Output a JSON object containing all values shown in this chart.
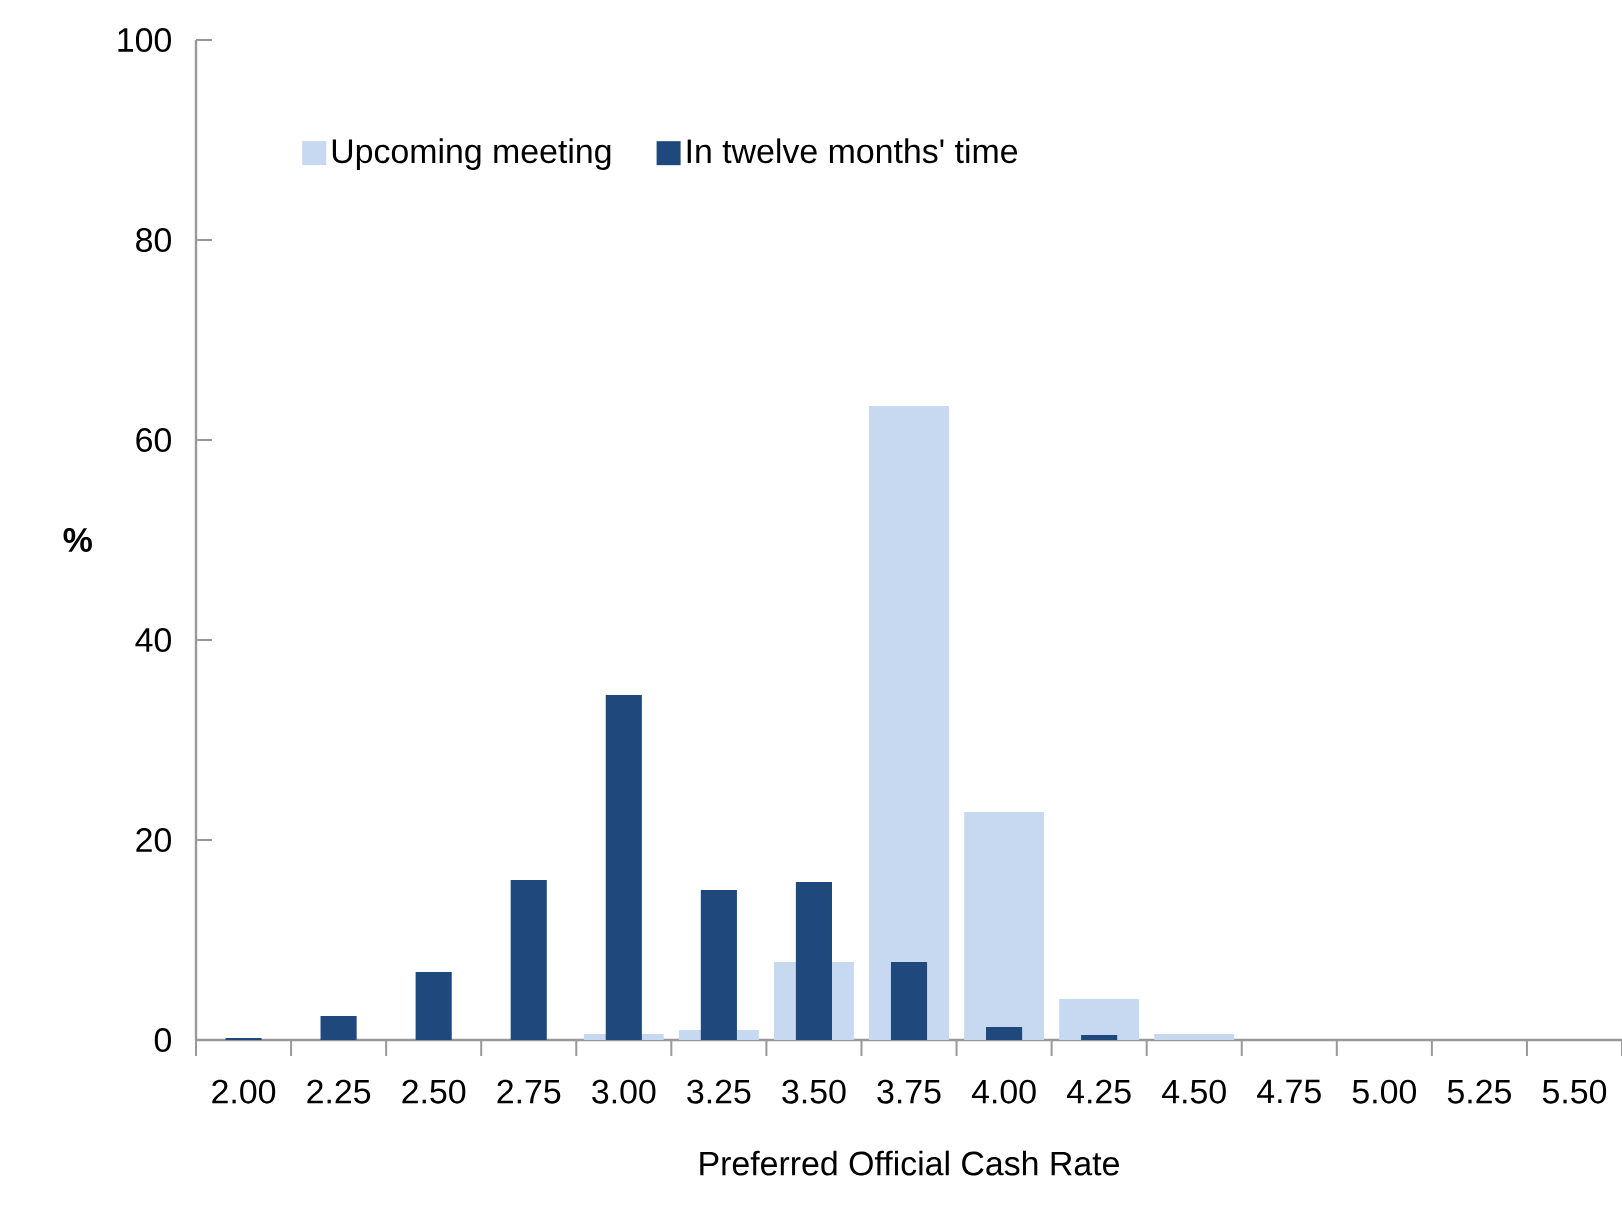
{
  "chart_data": {
    "type": "bar",
    "xlabel": "Preferred Official Cash Rate",
    "ylabel": "%",
    "categories": [
      "2.00",
      "2.25",
      "2.50",
      "2.75",
      "3.00",
      "3.25",
      "3.50",
      "3.75",
      "4.00",
      "4.25",
      "4.50",
      "4.75",
      "5.00",
      "5.25",
      "5.50"
    ],
    "series": [
      {
        "name": "Upcoming meeting",
        "color": "#c6d9f1",
        "values": [
          0,
          0,
          0,
          0,
          0.6,
          1,
          7.8,
          63.4,
          22.8,
          4.1,
          0.6,
          0,
          0,
          0,
          0
        ]
      },
      {
        "name": "In twelve months' time",
        "color": "#1f497d",
        "values": [
          0.2,
          2.4,
          6.8,
          16,
          34.5,
          15,
          15.8,
          7.8,
          1.3,
          0.5,
          0,
          0,
          0,
          0,
          0
        ]
      }
    ],
    "ylim": [
      0,
      100
    ],
    "yticks": [
      0,
      20,
      40,
      60,
      80,
      100
    ],
    "legend": "top"
  }
}
